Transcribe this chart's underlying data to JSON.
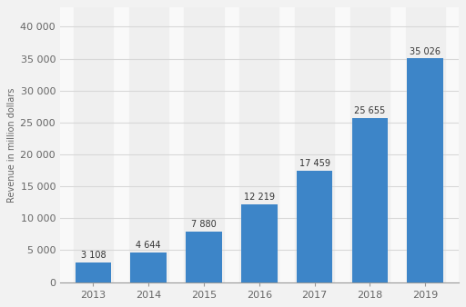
{
  "years": [
    "2013",
    "2014",
    "2015",
    "2016",
    "2017",
    "2018",
    "2019"
  ],
  "values": [
    3108,
    4644,
    7880,
    12219,
    17459,
    25655,
    35026
  ],
  "labels": [
    "3 108",
    "4 644",
    "7 880",
    "12 219",
    "17 459",
    "25 655",
    "35 026"
  ],
  "bar_color": "#3d85c8",
  "background_color": "#f2f2f2",
  "plot_bg_color": "#f9f9f9",
  "bar_bg_color": "#efefef",
  "ylabel": "Revenue in million dollars",
  "ylim": [
    0,
    43000
  ],
  "yticks": [
    0,
    5000,
    10000,
    15000,
    20000,
    25000,
    30000,
    35000,
    40000
  ],
  "ytick_labels": [
    "0",
    "5 000",
    "10 000",
    "15 000",
    "20 000",
    "25 000",
    "30 000",
    "35 000",
    "40 000"
  ],
  "grid_color": "#d8d8d8",
  "label_fontsize": 7.0,
  "tick_fontsize": 8.0,
  "ylabel_fontsize": 7.0,
  "bar_width": 0.65
}
